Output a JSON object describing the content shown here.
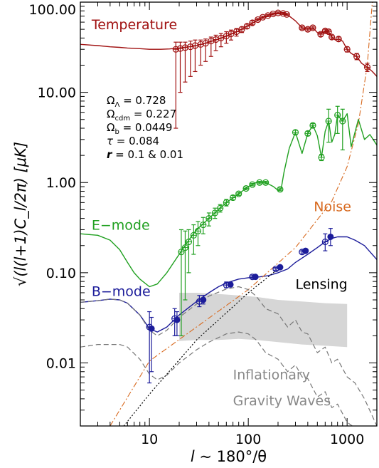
{
  "chart_data": {
    "type": "line",
    "x_scale": "log",
    "y_scale": "log",
    "xlim": [
      2,
      2000
    ],
    "ylim": [
      0.002,
      100
    ],
    "xlabel": "l ~ 180°/θ",
    "ylabel": "√(l(l+1)C_l/2π) [μK]",
    "x_ticks": [
      {
        "value": 10,
        "label": "10"
      },
      {
        "value": 100,
        "label": "100"
      },
      {
        "value": 1000,
        "label": "1000"
      }
    ],
    "y_ticks": [
      {
        "value": 100,
        "label": "100.00"
      },
      {
        "value": 10,
        "label": "10.00"
      },
      {
        "value": 1,
        "label": "1.00"
      },
      {
        "value": 0.1,
        "label": "0.10"
      },
      {
        "value": 0.01,
        "label": "0.01"
      }
    ],
    "parameters": [
      {
        "symbol": "Ω",
        "sub": "Λ",
        "value": "0.728"
      },
      {
        "symbol": "Ω",
        "sub": "cdm",
        "value": "0.227"
      },
      {
        "symbol": "Ω",
        "sub": "b",
        "value": "0.0449"
      },
      {
        "symbol": "τ",
        "sub": "",
        "value": "0.084"
      },
      {
        "symbol": "r",
        "sub": "",
        "value": "0.1 & 0.01"
      }
    ],
    "series": [
      {
        "name": "Temperature",
        "color": "#a01010",
        "style": "solid",
        "width": 1.4,
        "x": [
          2,
          3,
          4,
          5,
          6,
          8,
          10,
          13,
          16,
          20,
          25,
          30,
          40,
          50,
          60,
          80,
          100,
          130,
          160,
          200,
          230,
          260,
          300,
          350,
          400,
          450,
          500,
          540,
          600,
          650,
          700,
          760,
          820,
          900,
          1000,
          1100,
          1250,
          1400,
          1600,
          1800,
          2000
        ],
        "y": [
          34,
          33,
          32,
          31.5,
          31,
          30.5,
          30,
          30,
          30.3,
          31,
          32,
          33,
          36,
          39,
          42,
          48,
          55,
          65,
          72,
          76,
          75,
          70,
          62,
          52,
          50,
          52,
          46,
          44,
          48,
          47,
          41,
          38,
          39,
          37,
          30,
          27,
          25,
          21,
          19,
          17,
          15
        ]
      },
      {
        "name": "E-mode",
        "color": "#20a020",
        "style": "solid",
        "width": 1.4,
        "x": [
          2,
          3,
          4,
          5,
          6,
          7,
          8,
          10,
          12,
          15,
          20,
          25,
          30,
          40,
          50,
          60,
          80,
          100,
          120,
          150,
          180,
          200,
          215,
          230,
          260,
          300,
          350,
          400,
          450,
          500,
          550,
          600,
          650,
          700,
          750,
          800,
          900,
          1000,
          1100,
          1300,
          1500,
          1700,
          2000
        ],
        "y": [
          0.27,
          0.26,
          0.23,
          0.18,
          0.13,
          0.1,
          0.085,
          0.07,
          0.075,
          0.1,
          0.16,
          0.23,
          0.3,
          0.4,
          0.5,
          0.6,
          0.75,
          0.9,
          1.0,
          1.0,
          0.9,
          0.82,
          0.85,
          1.3,
          2.4,
          3.6,
          2.1,
          3.5,
          4.3,
          3.3,
          1.9,
          3.7,
          4.8,
          2.8,
          3.4,
          5.6,
          4.8,
          5.8,
          2.5,
          5.0,
          3.0,
          3.4,
          2.6
        ]
      },
      {
        "name": "B-mode",
        "color": "#1c1c9a",
        "style": "solid",
        "width": 1.4,
        "x": [
          2,
          3,
          4,
          5,
          6,
          8,
          10,
          12,
          15,
          20,
          30,
          40,
          50,
          60,
          80,
          100,
          130,
          160,
          200,
          250,
          300,
          400,
          500,
          600,
          700,
          800,
          1000,
          1200,
          1500,
          2000
        ],
        "y": [
          0.047,
          0.049,
          0.051,
          0.05,
          0.046,
          0.034,
          0.024,
          0.022,
          0.025,
          0.034,
          0.048,
          0.06,
          0.07,
          0.077,
          0.085,
          0.088,
          0.09,
          0.093,
          0.1,
          0.11,
          0.13,
          0.16,
          0.19,
          0.22,
          0.24,
          0.25,
          0.25,
          0.23,
          0.2,
          0.14
        ]
      },
      {
        "name": "Noise",
        "color": "#d86a20",
        "style": "dashdot",
        "width": 1.1,
        "x": [
          4,
          10,
          100,
          300,
          700,
          1000,
          1300,
          1600,
          1800
        ],
        "y": [
          0.002,
          0.0105,
          0.065,
          0.19,
          0.62,
          1.5,
          4.5,
          20,
          100
        ]
      },
      {
        "name": "Lensing",
        "color": "#000000",
        "style": "dotted",
        "width": 1.2,
        "x": [
          5.5,
          10,
          30,
          100,
          200
        ],
        "y": [
          0.002,
          0.0045,
          0.018,
          0.06,
          0.11
        ]
      },
      {
        "name": "Inflationary Gravity Waves r=0.1",
        "color": "#777777",
        "style": "dashed",
        "width": 1.2,
        "x": [
          2,
          3,
          4,
          5,
          6,
          8,
          10,
          12,
          15,
          20,
          30,
          40,
          60,
          80,
          100,
          120,
          150,
          200,
          250,
          300,
          350,
          400,
          500,
          600,
          700,
          800,
          1000,
          1200,
          1500,
          2000
        ],
        "y": [
          0.047,
          0.049,
          0.051,
          0.05,
          0.046,
          0.034,
          0.023,
          0.02,
          0.023,
          0.032,
          0.045,
          0.055,
          0.066,
          0.07,
          0.065,
          0.055,
          0.04,
          0.035,
          0.025,
          0.03,
          0.022,
          0.021,
          0.013,
          0.015,
          0.01,
          0.011,
          0.007,
          0.006,
          0.004,
          0.002
        ]
      },
      {
        "name": "Inflationary Gravity Waves r=0.01",
        "color": "#777777",
        "style": "dashed",
        "width": 1.2,
        "x": [
          2,
          3,
          4,
          5,
          6,
          8,
          10,
          12,
          15,
          20,
          30,
          40,
          60,
          80,
          100,
          120,
          150,
          200,
          250,
          300,
          350,
          400,
          500,
          600,
          700,
          800,
          1000,
          1200,
          1500
        ],
        "y": [
          0.015,
          0.016,
          0.016,
          0.016,
          0.015,
          0.011,
          0.0075,
          0.0065,
          0.0073,
          0.01,
          0.014,
          0.017,
          0.021,
          0.022,
          0.021,
          0.018,
          0.013,
          0.011,
          0.008,
          0.0095,
          0.007,
          0.0067,
          0.0042,
          0.0048,
          0.0032,
          0.0035,
          0.0022,
          0.0019,
          0.0013
        ]
      }
    ],
    "band": {
      "color": "#d6d6d6",
      "x": [
        20,
        30,
        50,
        80,
        120,
        200,
        350,
        600,
        1000
      ],
      "ymin": [
        0.0175,
        0.018,
        0.018,
        0.0185,
        0.018,
        0.017,
        0.016,
        0.0155,
        0.015
      ],
      "ymax": [
        0.06,
        0.06,
        0.058,
        0.056,
        0.054,
        0.05,
        0.048,
        0.046,
        0.045
      ]
    },
    "error_points": [
      {
        "series": "Temperature",
        "color": "#a01010",
        "open": true,
        "points": [
          {
            "x": 18.5,
            "y": 30,
            "lo": 4,
            "hi": 36
          },
          {
            "x": 20.5,
            "y": 30.6,
            "lo": 10,
            "hi": 36
          },
          {
            "x": 23,
            "y": 31.3,
            "lo": 13,
            "hi": 36
          },
          {
            "x": 26,
            "y": 32,
            "lo": 15,
            "hi": 37
          },
          {
            "x": 29,
            "y": 33,
            "lo": 17,
            "hi": 38
          },
          {
            "x": 33,
            "y": 34,
            "lo": 20,
            "hi": 38
          },
          {
            "x": 37,
            "y": 35,
            "lo": 22,
            "hi": 39
          },
          {
            "x": 42,
            "y": 37,
            "lo": 25,
            "hi": 41
          },
          {
            "x": 47,
            "y": 38.5,
            "lo": 29,
            "hi": 43
          },
          {
            "x": 53,
            "y": 40,
            "lo": 32,
            "hi": 45
          },
          {
            "x": 60,
            "y": 42,
            "lo": 35,
            "hi": 47
          },
          {
            "x": 67,
            "y": 44.5,
            "lo": 38,
            "hi": 49
          },
          {
            "x": 76,
            "y": 47,
            "lo": 42,
            "hi": 51
          },
          {
            "x": 86,
            "y": 50,
            "lo": 46,
            "hi": 53
          },
          {
            "x": 97,
            "y": 54,
            "lo": 51,
            "hi": 57
          },
          {
            "x": 110,
            "y": 59,
            "lo": 56,
            "hi": 62
          },
          {
            "x": 125,
            "y": 64,
            "lo": 62,
            "hi": 66
          },
          {
            "x": 140,
            "y": 68,
            "lo": 66,
            "hi": 70
          },
          {
            "x": 158,
            "y": 71,
            "lo": 69,
            "hi": 73
          },
          {
            "x": 178,
            "y": 74,
            "lo": 72,
            "hi": 76
          },
          {
            "x": 200,
            "y": 76,
            "lo": 74,
            "hi": 78
          },
          {
            "x": 225,
            "y": 75,
            "lo": 73,
            "hi": 77
          },
          {
            "x": 245,
            "y": 73,
            "lo": 71,
            "hi": 75
          },
          {
            "x": 350,
            "y": 52,
            "lo": 50,
            "hi": 54
          },
          {
            "x": 400,
            "y": 50,
            "lo": 48,
            "hi": 52
          },
          {
            "x": 450,
            "y": 52,
            "lo": 50,
            "hi": 54
          },
          {
            "x": 540,
            "y": 44,
            "lo": 42,
            "hi": 46
          },
          {
            "x": 600,
            "y": 48,
            "lo": 46,
            "hi": 50
          },
          {
            "x": 650,
            "y": 47,
            "lo": 45,
            "hi": 49
          },
          {
            "x": 700,
            "y": 41,
            "lo": 39,
            "hi": 43
          },
          {
            "x": 820,
            "y": 39,
            "lo": 37,
            "hi": 41
          },
          {
            "x": 1000,
            "y": 30,
            "lo": 28,
            "hi": 32
          },
          {
            "x": 1250,
            "y": 25,
            "lo": 23,
            "hi": 27
          },
          {
            "x": 1600,
            "y": 19,
            "lo": 17,
            "hi": 21
          }
        ]
      },
      {
        "series": "E-mode",
        "color": "#20a020",
        "open": true,
        "points": [
          {
            "x": 21,
            "y": 0.17,
            "lo": 0.02,
            "hi": 0.3
          },
          {
            "x": 23,
            "y": 0.19,
            "lo": 0.05,
            "hi": 0.29
          },
          {
            "x": 25,
            "y": 0.22,
            "lo": 0.1,
            "hi": 0.3
          },
          {
            "x": 28,
            "y": 0.26,
            "lo": 0.16,
            "hi": 0.34
          },
          {
            "x": 31,
            "y": 0.29,
            "lo": 0.2,
            "hi": 0.37
          },
          {
            "x": 35,
            "y": 0.34,
            "lo": 0.27,
            "hi": 0.41
          },
          {
            "x": 40,
            "y": 0.4,
            "lo": 0.33,
            "hi": 0.46
          },
          {
            "x": 46,
            "y": 0.46,
            "lo": 0.4,
            "hi": 0.52
          },
          {
            "x": 52,
            "y": 0.52,
            "lo": 0.47,
            "hi": 0.57
          },
          {
            "x": 60,
            "y": 0.6,
            "lo": 0.55,
            "hi": 0.65
          },
          {
            "x": 70,
            "y": 0.68,
            "lo": 0.64,
            "hi": 0.72
          },
          {
            "x": 80,
            "y": 0.75,
            "lo": 0.72,
            "hi": 0.78
          },
          {
            "x": 95,
            "y": 0.86,
            "lo": 0.83,
            "hi": 0.89
          },
          {
            "x": 110,
            "y": 0.95,
            "lo": 0.92,
            "hi": 0.98
          },
          {
            "x": 130,
            "y": 1.0,
            "lo": 0.97,
            "hi": 1.03
          },
          {
            "x": 150,
            "y": 1.0,
            "lo": 0.97,
            "hi": 1.03
          },
          {
            "x": 210,
            "y": 0.84,
            "lo": 0.81,
            "hi": 0.87
          },
          {
            "x": 300,
            "y": 3.6,
            "lo": 3.4,
            "hi": 3.8
          },
          {
            "x": 400,
            "y": 3.5,
            "lo": 3.3,
            "hi": 3.7
          },
          {
            "x": 450,
            "y": 4.3,
            "lo": 4.1,
            "hi": 4.5
          },
          {
            "x": 550,
            "y": 1.9,
            "lo": 1.75,
            "hi": 2.05
          },
          {
            "x": 650,
            "y": 4.8,
            "lo": 2.8,
            "hi": 6.5
          },
          {
            "x": 800,
            "y": 5.6,
            "lo": 3.5,
            "hi": 7.0
          },
          {
            "x": 900,
            "y": 4.8,
            "lo": 2.3,
            "hi": 6.5
          }
        ]
      },
      {
        "series": "B-mode",
        "color": "#1c1c9a",
        "open": true,
        "points": [
          {
            "x": 10,
            "y": 0.025,
            "lo": 0.006,
            "hi": 0.037
          },
          {
            "x": 18,
            "y": 0.031,
            "lo": 0.02,
            "hi": 0.04
          },
          {
            "x": 32,
            "y": 0.048,
            "lo": 0.042,
            "hi": 0.056
          },
          {
            "x": 60,
            "y": 0.073,
            "lo": 0.068,
            "hi": 0.079
          },
          {
            "x": 110,
            "y": 0.09,
            "lo": 0.086,
            "hi": 0.094
          },
          {
            "x": 190,
            "y": 0.11,
            "lo": 0.106,
            "hi": 0.114
          },
          {
            "x": 350,
            "y": 0.17,
            "lo": 0.162,
            "hi": 0.178
          },
          {
            "x": 600,
            "y": 0.22,
            "lo": 0.175,
            "hi": 0.27
          }
        ]
      },
      {
        "series": "B-mode",
        "color": "#1c1c9a",
        "open": false,
        "points": [
          {
            "x": 10.5,
            "y": 0.024,
            "lo": 0.008,
            "hi": 0.032
          },
          {
            "x": 19,
            "y": 0.03,
            "lo": 0.02,
            "hi": 0.037
          },
          {
            "x": 35,
            "y": 0.05,
            "lo": 0.045,
            "hi": 0.056
          },
          {
            "x": 66,
            "y": 0.074,
            "lo": 0.07,
            "hi": 0.078
          },
          {
            "x": 118,
            "y": 0.09,
            "lo": 0.087,
            "hi": 0.093
          },
          {
            "x": 210,
            "y": 0.115,
            "lo": 0.111,
            "hi": 0.119
          },
          {
            "x": 380,
            "y": 0.175,
            "lo": 0.168,
            "hi": 0.182
          },
          {
            "x": 680,
            "y": 0.25,
            "lo": 0.2,
            "hi": 0.31
          }
        ]
      }
    ],
    "annotations": [
      {
        "text": "Temperature",
        "color": "#a01010",
        "size": 19,
        "x": 2.6,
        "y": 50
      },
      {
        "text": "E−mode",
        "color": "#20a020",
        "size": 19,
        "x": 2.6,
        "y": 0.3
      },
      {
        "text": "B−mode",
        "color": "#1c1c9a",
        "size": 19,
        "x": 2.6,
        "y": 0.055
      },
      {
        "text": "Noise",
        "color": "#d86a20",
        "size": 19,
        "x": 460,
        "y": 0.48
      },
      {
        "text": "Lensing",
        "color": "#000000",
        "size": 19,
        "x": 300,
        "y": 0.066
      },
      {
        "text": "Inflationary",
        "color": "#888888",
        "size": 19,
        "x": 70,
        "y": 0.0066
      },
      {
        "text": "Gravity Waves",
        "color": "#888888",
        "size": 19,
        "x": 70,
        "y": 0.0034
      }
    ]
  }
}
